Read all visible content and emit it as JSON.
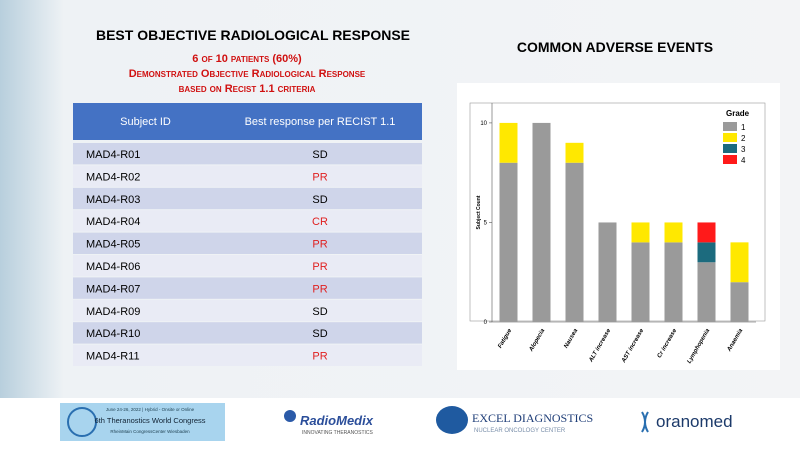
{
  "left": {
    "title": "BEST OBJECTIVE RADIOLOGICAL RESPONSE",
    "subtitle": [
      "6 of 10 patients (60%)",
      "Demonstrated Objective  Radiological Response",
      "based on Recist  1.1 criteria"
    ],
    "table": {
      "header": [
        "Subject ID",
        "Best response per RECIST 1.1"
      ],
      "rows": [
        {
          "subject": "MAD4-R01",
          "response": "SD",
          "color": "#000000"
        },
        {
          "subject": "MAD4-R02",
          "response": "PR",
          "color": "#e02020"
        },
        {
          "subject": "MAD4-R03",
          "response": "SD",
          "color": "#000000"
        },
        {
          "subject": "MAD4-R04",
          "response": "CR",
          "color": "#e02020"
        },
        {
          "subject": "MAD4-R05",
          "response": "PR",
          "color": "#e02020"
        },
        {
          "subject": "MAD4-R06",
          "response": "PR",
          "color": "#e02020"
        },
        {
          "subject": "MAD4-R07",
          "response": "PR",
          "color": "#e02020"
        },
        {
          "subject": "MAD4-R09",
          "response": "SD",
          "color": "#000000"
        },
        {
          "subject": "MAD4-R10",
          "response": "SD",
          "color": "#000000"
        },
        {
          "subject": "MAD4-R11",
          "response": "PR",
          "color": "#e02020"
        }
      ]
    }
  },
  "chart_data": {
    "type": "stacked_bar",
    "title": "COMMON ADVERSE EVENTS",
    "y_label": "Subject Count",
    "legend_title": "Grade",
    "legend_position": "top-right",
    "categories": [
      "Fatigue",
      "Alopecia",
      "Nausea",
      "ALT increase",
      "AST increase",
      "Cr increase",
      "Lymphopenia",
      "Anaemia"
    ],
    "series": [
      {
        "name": "1",
        "color": "#9a9a9a",
        "values": [
          8,
          10,
          8,
          5,
          4,
          4,
          3,
          2
        ]
      },
      {
        "name": "2",
        "color": "#ffe800",
        "values": [
          2,
          0,
          1,
          0,
          1,
          1,
          0,
          2
        ]
      },
      {
        "name": "3",
        "color": "#1c6b7e",
        "values": [
          0,
          0,
          0,
          0,
          0,
          0,
          1,
          0
        ]
      },
      {
        "name": "4",
        "color": "#ff1a1a",
        "values": [
          0,
          0,
          0,
          0,
          0,
          0,
          1,
          0
        ]
      }
    ],
    "ylim": [
      0,
      11
    ],
    "yticks": [
      0,
      5,
      10
    ]
  },
  "footer": {
    "congress": {
      "date": "June 24-26, 2022 | Hybrid - Onsite or Online",
      "name": "6th Theranostics World Congress",
      "venue": "RheinMain CongressCenter Wiesbaden"
    },
    "radiomedix": {
      "name": "RadioMedix",
      "tagline": "INNOVATING THERANOSTICS"
    },
    "excel": {
      "name": "EXCEL DIAGNOSTICS",
      "tagline": "NUCLEAR ONCOLOGY CENTER"
    },
    "oranomed": "oranomed"
  }
}
